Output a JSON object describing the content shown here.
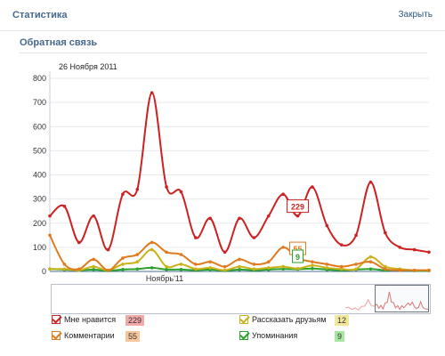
{
  "header": {
    "title": "Статистика",
    "close_label": "Закрыть"
  },
  "section": {
    "title": "Обратная связь"
  },
  "date_label": "26 Ноября 2011",
  "nav_label": "Ноябрь'11",
  "colors": {
    "likes": "#cc2222",
    "comments": "#e07a1e",
    "share": "#c9b21a",
    "mentions": "#2aa12a",
    "axis": "#4a6f95",
    "grid": "#e6e9ec"
  },
  "legend": [
    {
      "label": "Мне нравится",
      "value": "229",
      "color": "#cc2222",
      "badge_bg": "#f4a9a9"
    },
    {
      "label": "Комментарии",
      "value": "55",
      "color": "#e07a1e",
      "badge_bg": "#f8c69a"
    },
    {
      "label": "Рассказать друзьям",
      "value": "12",
      "color": "#c9b21a",
      "badge_bg": "#f2e59c"
    },
    {
      "label": "Упоминания",
      "value": "9",
      "color": "#2aa12a",
      "badge_bg": "#a8e6a3"
    }
  ],
  "chart_data": {
    "type": "line",
    "ylim": [
      0,
      800
    ],
    "yticks": [
      "0",
      "100",
      "200",
      "300",
      "400",
      "500",
      "600",
      "700",
      "800"
    ],
    "x": [
      0,
      1,
      2,
      3,
      4,
      5,
      6,
      7,
      8,
      9,
      10,
      11,
      12,
      13,
      14,
      15,
      16,
      17,
      18,
      19,
      20,
      21,
      22,
      23,
      24,
      25,
      26
    ],
    "series": [
      {
        "name": "Мне нравится",
        "color": "#cc2222",
        "values": [
          230,
          270,
          120,
          230,
          90,
          320,
          340,
          740,
          350,
          330,
          140,
          220,
          80,
          220,
          140,
          230,
          320,
          230,
          350,
          190,
          110,
          150,
          370,
          160,
          100,
          90,
          80
        ]
      },
      {
        "name": "Комментарии",
        "color": "#e07a1e",
        "values": [
          150,
          30,
          10,
          50,
          5,
          55,
          70,
          120,
          80,
          70,
          30,
          40,
          20,
          50,
          30,
          40,
          100,
          55,
          40,
          30,
          20,
          30,
          40,
          10,
          5,
          5,
          5
        ]
      },
      {
        "name": "Рассказать друзьям",
        "color": "#c9b21a",
        "values": [
          10,
          10,
          5,
          20,
          5,
          30,
          40,
          90,
          20,
          30,
          10,
          15,
          5,
          20,
          10,
          15,
          20,
          12,
          25,
          15,
          10,
          10,
          60,
          20,
          10,
          5,
          5
        ]
      },
      {
        "name": "Упоминания",
        "color": "#2aa12a",
        "values": [
          10,
          8,
          5,
          8,
          3,
          8,
          10,
          15,
          8,
          8,
          5,
          8,
          3,
          8,
          5,
          8,
          10,
          9,
          12,
          8,
          5,
          8,
          10,
          5,
          5,
          3,
          3
        ]
      }
    ],
    "callouts": [
      {
        "series": 0,
        "x": 17,
        "value": "229"
      },
      {
        "series": 1,
        "x": 17,
        "value": "55"
      },
      {
        "series": 3,
        "x": 17,
        "value": "9"
      }
    ],
    "grid": true,
    "legend_position": "bottom"
  }
}
